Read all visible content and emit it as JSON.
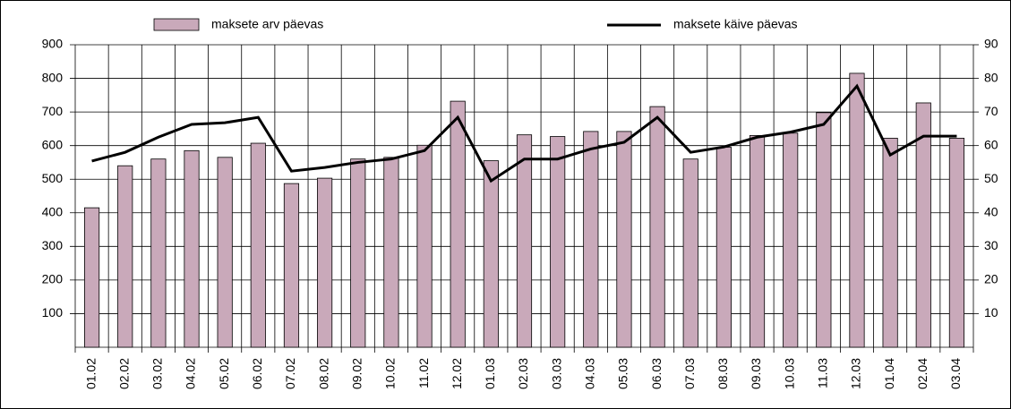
{
  "chart_data": {
    "type": "bar-line",
    "categories": [
      "01.02",
      "02.02",
      "03.02",
      "04.02",
      "05.02",
      "06.02",
      "07.02",
      "08.02",
      "09.02",
      "10.02",
      "11.02",
      "12.02",
      "01.03",
      "02.03",
      "03.03",
      "04.03",
      "05.03",
      "06.03",
      "07.03",
      "08.03",
      "09.03",
      "10.03",
      "11.03",
      "12.03",
      "01.04",
      "02.04",
      "03.04"
    ],
    "series": [
      {
        "name": "maksete arv päevas",
        "color": "#c9a9ba",
        "type": "bar",
        "values": [
          415,
          540,
          560,
          585,
          565,
          607,
          487,
          503,
          560,
          565,
          601,
          732,
          555,
          632,
          627,
          642,
          642,
          716,
          560,
          595,
          630,
          637,
          698,
          815,
          622,
          727,
          622
        ]
      },
      {
        "name": "maksete käive päevas",
        "color": "#000000",
        "type": "line",
        "axis": "y2",
        "values": [
          55.4,
          58,
          62.5,
          66.3,
          66.8,
          68.4,
          52.4,
          53.5,
          55,
          56,
          58.5,
          68.4,
          49.5,
          56,
          56,
          59,
          61,
          68.4,
          58,
          59.6,
          62.5,
          64,
          66.3,
          77.7,
          57.2,
          62.8,
          62.8
        ]
      }
    ],
    "ylim": [
      0,
      900
    ],
    "yticks": [
      100,
      200,
      300,
      400,
      500,
      600,
      700,
      800,
      900
    ],
    "y2lim": [
      0,
      90
    ],
    "y2ticks": [
      10,
      20,
      30,
      40,
      50,
      60,
      70,
      80,
      90
    ],
    "grid": true,
    "legend": "top"
  }
}
